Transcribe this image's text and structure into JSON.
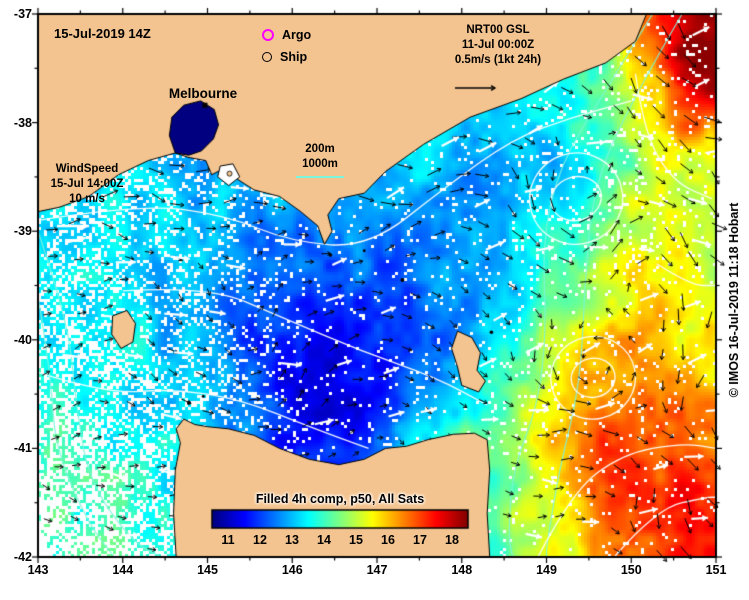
{
  "header": {
    "datetime": "15-Jul-2019 14Z"
  },
  "legend": {
    "argo": "Argo",
    "ship": "Ship"
  },
  "gsl": {
    "title": "NRT00 GSL",
    "datetime": "11-Jul 00:00Z",
    "scale": "0.5m/s (1kt 24h)"
  },
  "wind": {
    "title": "WindSpeed",
    "datetime": "15-Jul 14:00Z",
    "scale": "10 m/s"
  },
  "isobath": {
    "l1": "200m",
    "l2": "1000m"
  },
  "city": "Melbourne",
  "colorbar": {
    "caption": "Filled 4h comp, p50, All Sats",
    "tick_labels": [
      "11",
      "12",
      "13",
      "14",
      "15",
      "16",
      "17",
      "18"
    ]
  },
  "axes": {
    "x_tick_labels": [
      "143",
      "144",
      "145",
      "146",
      "147",
      "148",
      "149",
      "150",
      "151"
    ],
    "y_tick_labels": [
      "-37",
      "-38",
      "-39",
      "-40",
      "-41",
      "-42"
    ],
    "lon_range": [
      143,
      151
    ],
    "lat_range": [
      -42,
      -37
    ]
  },
  "copyright": "© IMOS 16-Jul-2019 11:18 Hobart",
  "colors": {
    "land": "#f3c490",
    "coast": "#000000",
    "frame": "#000000",
    "argo": "#ff00ff",
    "ship": "#000000",
    "isobath": "#7df5dc",
    "gsl_contour": "#ffffff",
    "current_arrow": "#000000",
    "wind_arrow": "#ffffff",
    "cloud": "#ffffff",
    "bay_water": "#000080",
    "text": "#000000"
  }
}
